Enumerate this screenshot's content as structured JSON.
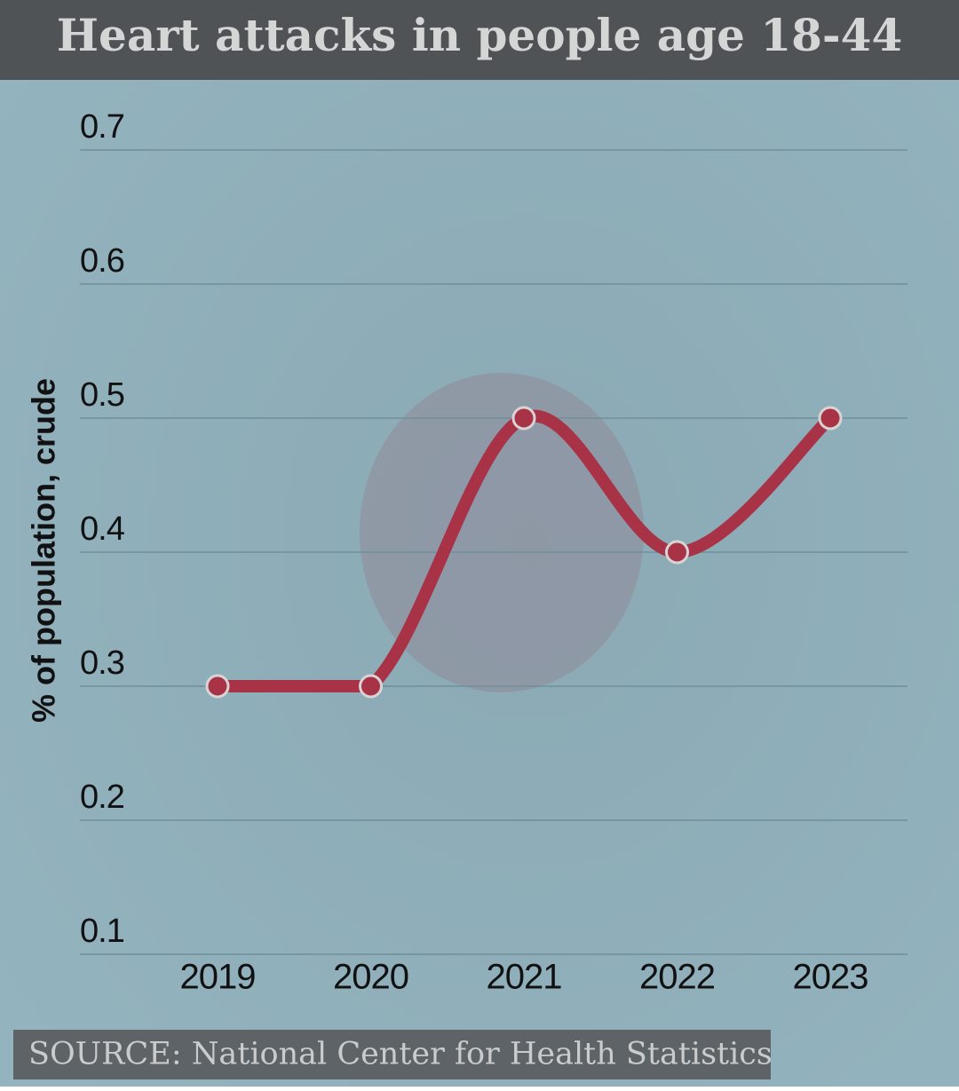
{
  "chart_data": {
    "type": "line",
    "title": "Heart attacks in people age 18-44",
    "y_label": "% of population, crude",
    "source": "SOURCE: National Center for Health Statistics",
    "categories": [
      "2019",
      "2020",
      "2021",
      "2022",
      "2023"
    ],
    "values": [
      0.3,
      0.3,
      0.5,
      0.4,
      0.5
    ],
    "color": "#a83246",
    "ylim": [
      0.1,
      0.7
    ],
    "yticks": [
      0.1,
      0.2,
      0.3,
      0.4,
      0.5,
      0.6,
      0.7
    ],
    "grid": true
  }
}
